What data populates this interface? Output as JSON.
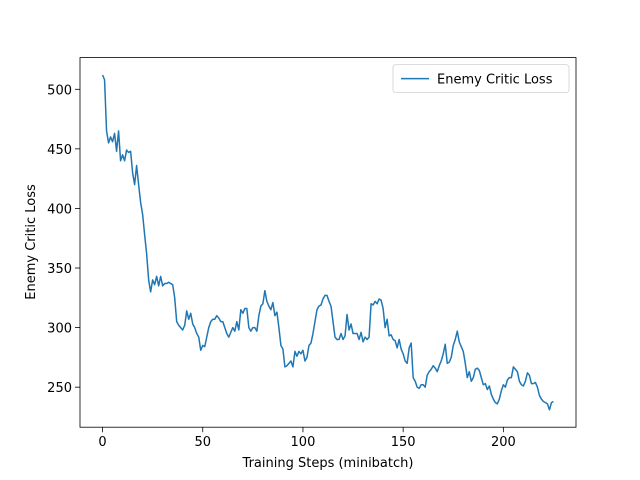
{
  "chart_data": {
    "type": "line",
    "xlabel": "Training Steps (minibatch)",
    "ylabel": "Enemy Critic Loss",
    "legend": "upper right",
    "x": [
      0,
      1,
      2,
      3,
      4,
      5,
      6,
      7,
      8,
      9,
      10,
      11,
      12,
      13,
      14,
      15,
      16,
      17,
      18,
      19,
      20,
      21,
      22,
      23,
      24,
      25,
      26,
      27,
      28,
      29,
      30,
      31,
      32,
      33,
      34,
      35,
      36,
      37,
      38,
      39,
      40,
      41,
      42,
      43,
      44,
      45,
      46,
      47,
      48,
      49,
      50,
      51,
      52,
      53,
      54,
      55,
      56,
      57,
      58,
      59,
      60,
      61,
      62,
      63,
      64,
      65,
      66,
      67,
      68,
      69,
      70,
      71,
      72,
      73,
      74,
      75,
      76,
      77,
      78,
      79,
      80,
      81,
      82,
      83,
      84,
      85,
      86,
      87,
      88,
      89,
      90,
      91,
      92,
      93,
      94,
      95,
      96,
      97,
      98,
      99,
      100,
      101,
      102,
      103,
      104,
      105,
      106,
      107,
      108,
      109,
      110,
      111,
      112,
      113,
      114,
      115,
      116,
      117,
      118,
      119,
      120,
      121,
      122,
      123,
      124,
      125,
      126,
      127,
      128,
      129,
      130,
      131,
      132,
      133,
      134,
      135,
      136,
      137,
      138,
      139,
      140,
      141,
      142,
      143,
      144,
      145,
      146,
      147,
      148,
      149,
      150,
      151,
      152,
      153,
      154,
      155,
      156,
      157,
      158,
      159,
      160,
      161,
      162,
      163,
      164,
      165,
      166,
      167,
      168,
      169,
      170,
      171,
      172,
      173,
      174,
      175,
      176,
      177,
      178,
      179,
      180,
      181,
      182,
      183,
      184,
      185,
      186,
      187,
      188,
      189,
      190,
      191,
      192,
      193,
      194,
      195,
      196,
      197,
      198,
      199,
      200,
      201,
      202,
      203,
      204,
      205,
      206,
      207,
      208,
      209,
      210,
      211,
      212,
      213,
      214,
      215,
      216,
      217,
      218,
      219,
      220,
      221,
      222,
      223,
      224,
      225
    ],
    "series": [
      {
        "name": "Enemy Critic Loss",
        "color": "#1f77b4",
        "values": [
          512,
          508,
          465,
          455,
          460,
          456,
          463,
          448,
          465,
          440,
          445,
          440,
          449,
          447,
          448,
          430,
          420,
          436,
          420,
          405,
          395,
          378,
          362,
          340,
          330,
          340,
          336,
          343,
          335,
          343,
          335,
          337,
          337,
          338,
          337,
          336,
          325,
          305,
          302,
          300,
          298,
          302,
          314,
          307,
          312,
          303,
          300,
          295,
          292,
          281,
          285,
          284,
          292,
          300,
          305,
          307,
          307,
          310,
          308,
          305,
          305,
          300,
          295,
          292,
          296,
          300,
          297,
          305,
          298,
          315,
          312,
          316,
          316,
          300,
          297,
          300,
          300,
          297,
          310,
          318,
          320,
          331,
          322,
          318,
          315,
          321,
          310,
          313,
          300,
          285,
          282,
          267,
          268,
          270,
          272,
          267,
          280,
          276,
          280,
          278,
          281,
          272,
          275,
          285,
          287,
          295,
          305,
          315,
          318,
          319,
          324,
          327,
          327,
          322,
          318,
          305,
          292,
          290,
          290,
          295,
          290,
          293,
          311,
          298,
          303,
          295,
          295,
          295,
          290,
          296,
          288,
          292,
          290,
          292,
          320,
          319,
          322,
          320,
          324,
          323,
          316,
          300,
          307,
          293,
          294,
          290,
          289,
          283,
          290,
          282,
          278,
          272,
          270,
          283,
          287,
          258,
          255,
          250,
          249,
          252,
          252,
          250,
          260,
          263,
          265,
          268,
          266,
          263,
          268,
          272,
          278,
          286,
          270,
          271,
          275,
          285,
          290,
          297,
          288,
          284,
          280,
          270,
          258,
          263,
          255,
          258,
          265,
          266,
          264,
          258,
          252,
          253,
          248,
          251,
          244,
          240,
          237,
          236,
          240,
          247,
          252,
          250,
          256,
          258,
          258,
          267,
          265,
          263,
          255,
          252,
          251,
          255,
          262,
          260,
          253,
          253,
          254,
          250,
          243,
          240,
          238,
          237,
          236,
          231,
          237,
          238
        ]
      }
    ],
    "xlim": [
      -11.25,
      236.25
    ],
    "ylim": [
      216.4,
      526.6
    ],
    "xticks": [
      0,
      50,
      100,
      150,
      200
    ],
    "yticks": [
      250,
      300,
      350,
      400,
      450,
      500
    ]
  }
}
